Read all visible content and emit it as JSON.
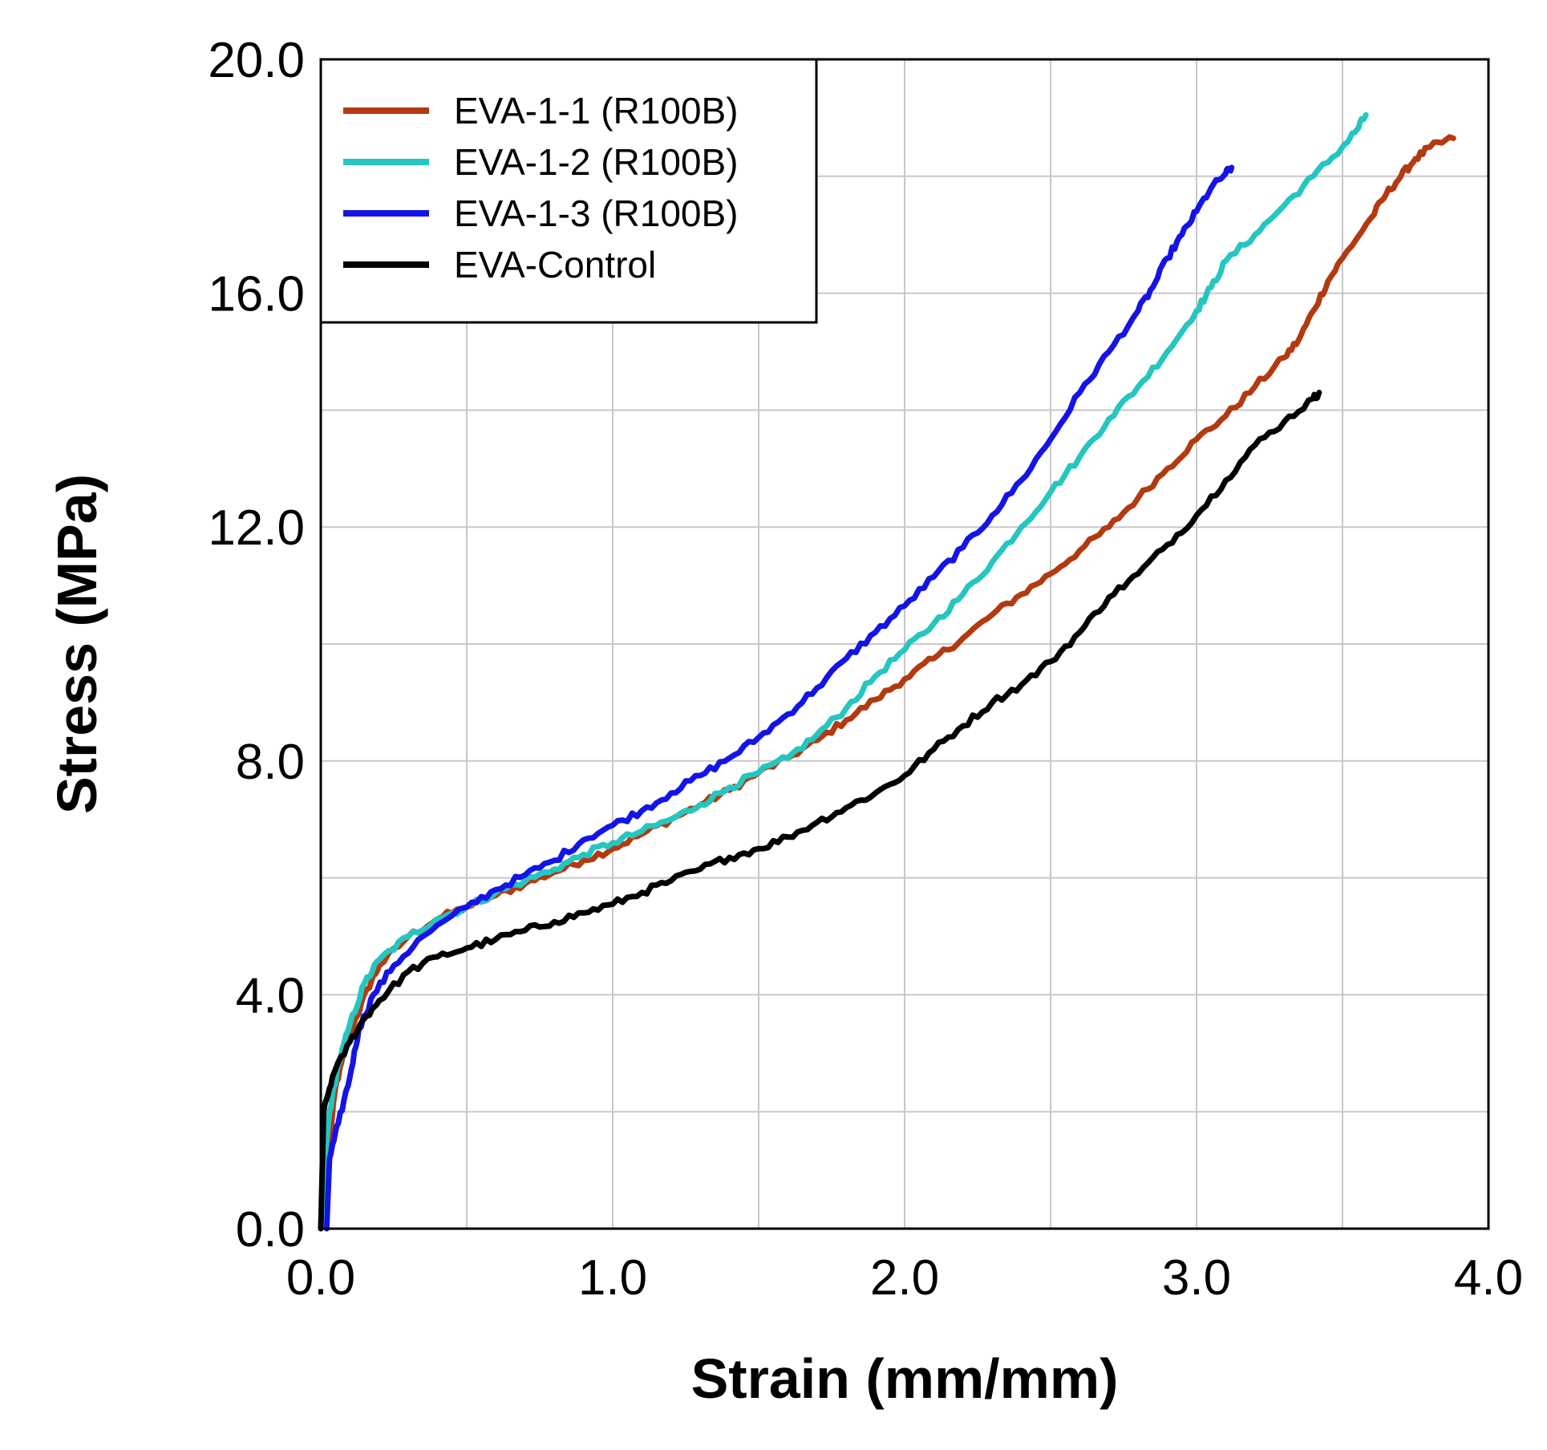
{
  "chart_data": {
    "type": "line",
    "title": "",
    "xlabel": "Strain (mm/mm)",
    "ylabel": "Stress (MPa)",
    "xlim": [
      0.0,
      4.0
    ],
    "ylim": [
      0.0,
      20.0
    ],
    "x_ticks": [
      0.0,
      1.0,
      2.0,
      3.0,
      4.0
    ],
    "x_tick_labels": [
      "0.0",
      "1.0",
      "2.0",
      "3.0",
      "4.0"
    ],
    "y_ticks": [
      0.0,
      4.0,
      8.0,
      12.0,
      16.0,
      20.0
    ],
    "y_tick_labels": [
      "0.0",
      "4.0",
      "8.0",
      "12.0",
      "16.0",
      "20.0"
    ],
    "x_grid_step": 0.5,
    "y_grid_step": 2.0,
    "grid": true,
    "legend_position": "top-left",
    "series": [
      {
        "name": "EVA-1-1 (R100B)",
        "color": "#b33a10",
        "points": [
          [
            0.02,
            0.4
          ],
          [
            0.03,
            1.5
          ],
          [
            0.05,
            2.4
          ],
          [
            0.08,
            3.0
          ],
          [
            0.12,
            3.6
          ],
          [
            0.16,
            4.1
          ],
          [
            0.2,
            4.5
          ],
          [
            0.3,
            5.0
          ],
          [
            0.4,
            5.3
          ],
          [
            0.5,
            5.5
          ],
          [
            0.6,
            5.7
          ],
          [
            0.7,
            5.9
          ],
          [
            0.8,
            6.1
          ],
          [
            0.9,
            6.3
          ],
          [
            1.0,
            6.5
          ],
          [
            1.1,
            6.75
          ],
          [
            1.2,
            7.0
          ],
          [
            1.3,
            7.25
          ],
          [
            1.4,
            7.5
          ],
          [
            1.5,
            7.8
          ],
          [
            1.6,
            8.05
          ],
          [
            1.7,
            8.35
          ],
          [
            1.8,
            8.7
          ],
          [
            1.9,
            9.05
          ],
          [
            2.0,
            9.4
          ],
          [
            2.1,
            9.75
          ],
          [
            2.2,
            10.1
          ],
          [
            2.3,
            10.5
          ],
          [
            2.4,
            10.85
          ],
          [
            2.5,
            11.2
          ],
          [
            2.6,
            11.6
          ],
          [
            2.7,
            12.0
          ],
          [
            2.8,
            12.5
          ],
          [
            2.9,
            13.0
          ],
          [
            3.0,
            13.5
          ],
          [
            3.1,
            13.9
          ],
          [
            3.2,
            14.4
          ],
          [
            3.3,
            14.9
          ],
          [
            3.35,
            15.2
          ],
          [
            3.4,
            15.7
          ],
          [
            3.45,
            16.2
          ],
          [
            3.5,
            16.6
          ],
          [
            3.6,
            17.3
          ],
          [
            3.65,
            17.7
          ],
          [
            3.7,
            18.0
          ],
          [
            3.75,
            18.3
          ],
          [
            3.8,
            18.5
          ],
          [
            3.88,
            18.65
          ]
        ]
      },
      {
        "name": "EVA-1-2 (R100B)",
        "color": "#25c6c0",
        "points": [
          [
            0.0,
            0.0
          ],
          [
            0.01,
            1.0
          ],
          [
            0.03,
            2.0
          ],
          [
            0.06,
            2.8
          ],
          [
            0.1,
            3.5
          ],
          [
            0.15,
            4.2
          ],
          [
            0.2,
            4.6
          ],
          [
            0.3,
            5.0
          ],
          [
            0.4,
            5.3
          ],
          [
            0.5,
            5.5
          ],
          [
            0.6,
            5.75
          ],
          [
            0.7,
            5.95
          ],
          [
            0.8,
            6.15
          ],
          [
            0.9,
            6.4
          ],
          [
            1.0,
            6.6
          ],
          [
            1.1,
            6.8
          ],
          [
            1.2,
            7.0
          ],
          [
            1.3,
            7.25
          ],
          [
            1.4,
            7.55
          ],
          [
            1.5,
            7.8
          ],
          [
            1.6,
            8.05
          ],
          [
            1.7,
            8.45
          ],
          [
            1.8,
            8.9
          ],
          [
            1.9,
            9.45
          ],
          [
            2.0,
            9.9
          ],
          [
            2.1,
            10.35
          ],
          [
            2.2,
            10.85
          ],
          [
            2.3,
            11.4
          ],
          [
            2.4,
            12.0
          ],
          [
            2.5,
            12.6
          ],
          [
            2.6,
            13.2
          ],
          [
            2.7,
            13.85
          ],
          [
            2.8,
            14.4
          ],
          [
            2.9,
            15.0
          ],
          [
            3.0,
            15.7
          ],
          [
            3.05,
            16.1
          ],
          [
            3.1,
            16.55
          ],
          [
            3.2,
            17.0
          ],
          [
            3.3,
            17.5
          ],
          [
            3.4,
            18.0
          ],
          [
            3.5,
            18.5
          ],
          [
            3.55,
            18.8
          ],
          [
            3.58,
            19.05
          ]
        ]
      },
      {
        "name": "EVA-1-3 (R100B)",
        "color": "#1414e6",
        "points": [
          [
            0.02,
            0.0
          ],
          [
            0.03,
            1.2
          ],
          [
            0.06,
            1.8
          ],
          [
            0.1,
            2.6
          ],
          [
            0.13,
            3.4
          ],
          [
            0.18,
            4.0
          ],
          [
            0.25,
            4.5
          ],
          [
            0.35,
            5.0
          ],
          [
            0.5,
            5.5
          ],
          [
            0.6,
            5.8
          ],
          [
            0.7,
            6.05
          ],
          [
            0.8,
            6.3
          ],
          [
            0.9,
            6.65
          ],
          [
            1.0,
            6.9
          ],
          [
            1.1,
            7.15
          ],
          [
            1.2,
            7.45
          ],
          [
            1.3,
            7.75
          ],
          [
            1.4,
            8.05
          ],
          [
            1.5,
            8.4
          ],
          [
            1.6,
            8.8
          ],
          [
            1.7,
            9.25
          ],
          [
            1.8,
            9.75
          ],
          [
            1.9,
            10.2
          ],
          [
            2.0,
            10.65
          ],
          [
            2.1,
            11.15
          ],
          [
            2.2,
            11.65
          ],
          [
            2.3,
            12.2
          ],
          [
            2.4,
            12.8
          ],
          [
            2.5,
            13.5
          ],
          [
            2.6,
            14.3
          ],
          [
            2.7,
            15.0
          ],
          [
            2.8,
            15.7
          ],
          [
            2.85,
            16.1
          ],
          [
            2.9,
            16.6
          ],
          [
            2.95,
            17.0
          ],
          [
            3.0,
            17.4
          ],
          [
            3.05,
            17.8
          ],
          [
            3.1,
            18.05
          ],
          [
            3.12,
            18.15
          ]
        ]
      },
      {
        "name": "EVA-Control",
        "color": "#000000",
        "points": [
          [
            0.0,
            0.0
          ],
          [
            0.01,
            2.0
          ],
          [
            0.04,
            2.6
          ],
          [
            0.1,
            3.2
          ],
          [
            0.15,
            3.6
          ],
          [
            0.2,
            3.9
          ],
          [
            0.3,
            4.4
          ],
          [
            0.4,
            4.65
          ],
          [
            0.5,
            4.8
          ],
          [
            0.6,
            4.95
          ],
          [
            0.7,
            5.1
          ],
          [
            0.8,
            5.25
          ],
          [
            0.9,
            5.4
          ],
          [
            1.0,
            5.55
          ],
          [
            1.1,
            5.75
          ],
          [
            1.2,
            5.95
          ],
          [
            1.3,
            6.15
          ],
          [
            1.4,
            6.35
          ],
          [
            1.5,
            6.5
          ],
          [
            1.6,
            6.7
          ],
          [
            1.7,
            6.95
          ],
          [
            1.8,
            7.2
          ],
          [
            1.9,
            7.45
          ],
          [
            2.0,
            7.75
          ],
          [
            2.1,
            8.2
          ],
          [
            2.2,
            8.6
          ],
          [
            2.3,
            9.0
          ],
          [
            2.4,
            9.3
          ],
          [
            2.5,
            9.7
          ],
          [
            2.6,
            10.2
          ],
          [
            2.7,
            10.8
          ],
          [
            2.8,
            11.2
          ],
          [
            2.9,
            11.7
          ],
          [
            3.0,
            12.2
          ],
          [
            3.1,
            12.8
          ],
          [
            3.2,
            13.4
          ],
          [
            3.3,
            13.8
          ],
          [
            3.4,
            14.2
          ],
          [
            3.42,
            14.3
          ]
        ]
      }
    ]
  }
}
